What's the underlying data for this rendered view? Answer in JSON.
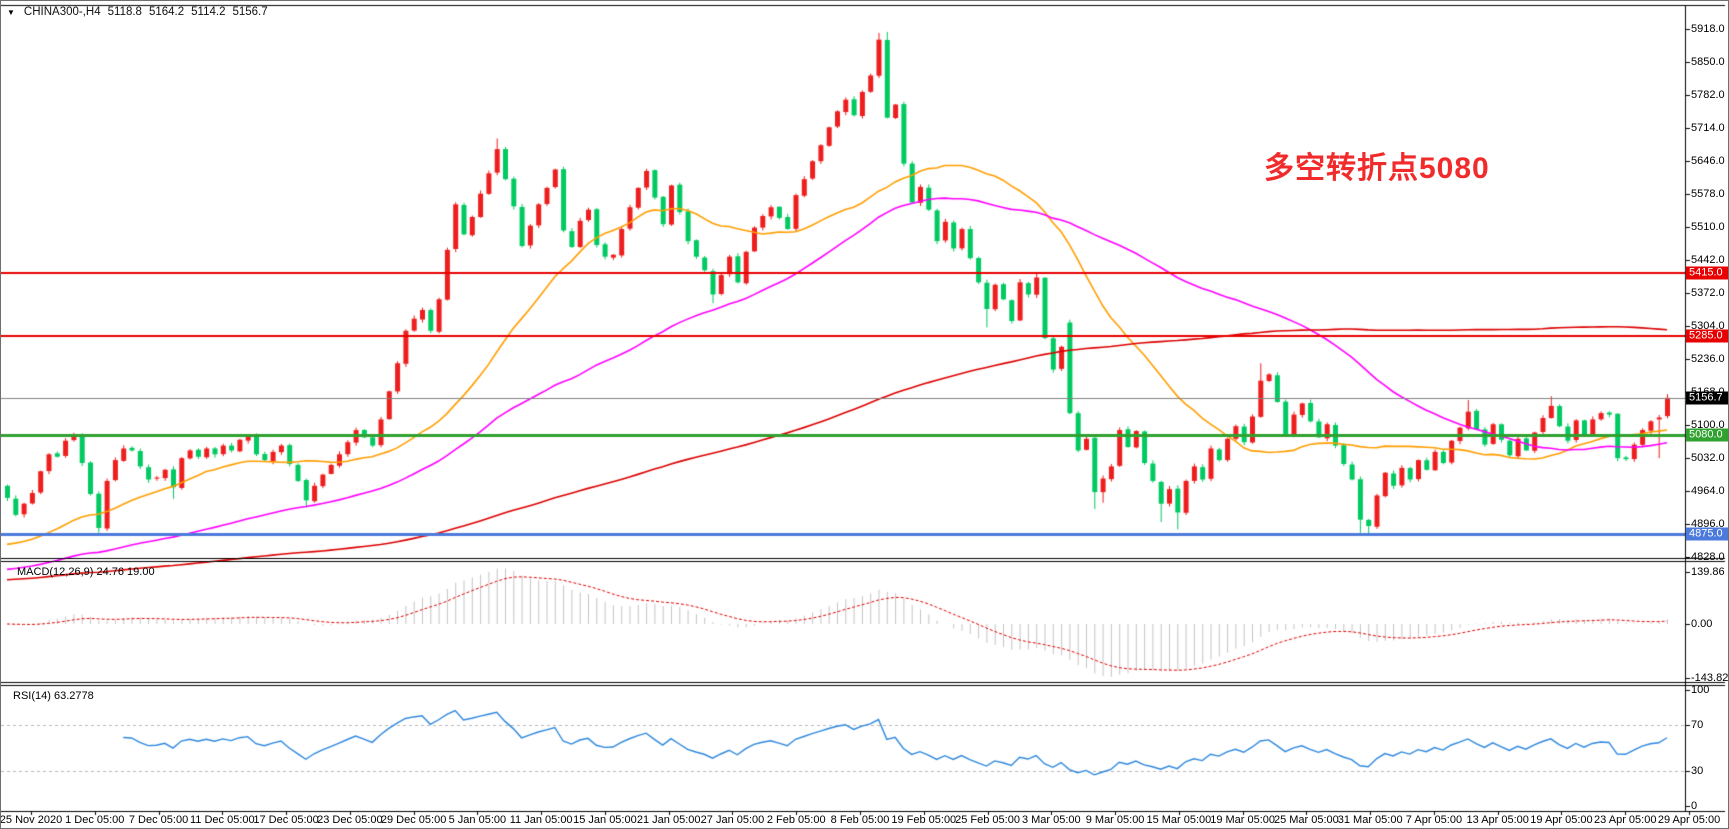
{
  "header": {
    "symbol": "CHINA300-,H4",
    "open": "5118.8",
    "high": "5164.2",
    "low": "5114.2",
    "close": "5156.7"
  },
  "chart_data": {
    "type": "candlestick",
    "title": "CHINA300- H4 chart with MACD and RSI",
    "up_color": "#ee1e1e",
    "down_color": "#00ca61",
    "main": {
      "price_axis": {
        "top": 5918.0,
        "bottom": 4828.0
      },
      "y_ticks": [
        5918.0,
        5850.0,
        5782.0,
        5714.0,
        5646.0,
        5578.0,
        5510.0,
        5442.0,
        5372.0,
        5304.0,
        5236.0,
        5168.0,
        5100.0,
        5032.0,
        4964.0,
        4896.0,
        4828.0
      ],
      "closes": [
        4950,
        4915,
        4938,
        4960,
        5005,
        5040,
        5035,
        5068,
        5078,
        5022,
        4958,
        4888,
        4985,
        5028,
        5052,
        5048,
        5015,
        4988,
        4992,
        5008,
        4972,
        5032,
        5048,
        5035,
        5052,
        5040,
        5058,
        5048,
        5070,
        5078,
        5040,
        5028,
        5045,
        5058,
        5020,
        4985,
        4945,
        4975,
        4998,
        5018,
        5040,
        5065,
        5090,
        5075,
        5058,
        5112,
        5170,
        5228,
        5295,
        5320,
        5338,
        5295,
        5360,
        5462,
        5556,
        5494,
        5530,
        5578,
        5620,
        5670,
        5608,
        5552,
        5470,
        5512,
        5556,
        5590,
        5628,
        5502,
        5468,
        5522,
        5545,
        5472,
        5448,
        5452,
        5505,
        5550,
        5590,
        5625,
        5570,
        5515,
        5595,
        5540,
        5480,
        5448,
        5420,
        5370,
        5410,
        5448,
        5395,
        5458,
        5508,
        5532,
        5550,
        5528,
        5505,
        5575,
        5608,
        5645,
        5678,
        5715,
        5748,
        5772,
        5740,
        5788,
        5822,
        5896,
        5735,
        5762,
        5640,
        5560,
        5592,
        5545,
        5480,
        5520,
        5465,
        5505,
        5445,
        5395,
        5340,
        5390,
        5360,
        5315,
        5395,
        5370,
        5405,
        5280,
        5215,
        5262,
        5125,
        5048,
        5072,
        4962,
        4990,
        5015,
        5090,
        5055,
        5088,
        5022,
        4985,
        4938,
        4968,
        4920,
        4985,
        5015,
        4988,
        5052,
        5028,
        5072,
        5098,
        5065,
        5118,
        5192,
        5205,
        5148,
        5082,
        5122,
        5145,
        5108,
        5075,
        5102,
        5058,
        5020,
        4988,
        4905,
        4892,
        4955,
        5002,
        4975,
        5012,
        4988,
        5028,
        5008,
        5045,
        5022,
        5068,
        5095,
        5128,
        5092,
        5060,
        5102,
        5070,
        5038,
        5072,
        5048,
        5085,
        5115,
        5140,
        5098,
        5068,
        5110,
        5080,
        5112,
        5125,
        5122,
        5032,
        5030,
        5060,
        5090,
        5108,
        5116,
        5156.7
      ],
      "overrides": {
        "11": {
          "low": 4878
        },
        "20": {
          "low": 4948
        },
        "36": {
          "low": 4930
        },
        "59": {
          "high": 5692
        },
        "85": {
          "low": 5352
        },
        "105": {
          "high": 5910
        },
        "106": {
          "high": 5912
        },
        "118": {
          "low": 5302
        },
        "124": {
          "high": 5413
        },
        "128": {
          "open": 5312,
          "high": 5318
        },
        "131": {
          "low": 4927
        },
        "132": {
          "low": 4940
        },
        "139": {
          "low": 4900
        },
        "141": {
          "low": 4885
        },
        "151": {
          "high": 5228
        },
        "163": {
          "low": 4878
        },
        "164": {
          "low": 4872
        },
        "176": {
          "high": 5152
        },
        "186": {
          "high": 5160
        },
        "199": {
          "open": 5112,
          "low": 5032
        },
        "200": {
          "open": 5118.8,
          "high": 5164.2,
          "low": 5114.2,
          "close": 5156.7
        }
      },
      "moving_averages": [
        {
          "name": "fast-ma",
          "period": 25,
          "backfill": 4850,
          "color": "#ff9e00"
        },
        {
          "name": "medium-ma",
          "period": 60,
          "backfill": 4800,
          "color": "#ff00ff"
        },
        {
          "name": "slow-ma",
          "period": 150,
          "backfill": 4780,
          "color": "#dd0000"
        }
      ],
      "h_lines": [
        {
          "value": 5415.0,
          "label": "5415.0",
          "color": "#e80000",
          "width": 2,
          "tag_bg": "#e80000"
        },
        {
          "value": 5285.0,
          "label": "5285.0",
          "color": "#e80000",
          "width": 2,
          "tag_bg": "#e80000"
        },
        {
          "value": 5156.7,
          "label": "5156.7",
          "color": "#808080",
          "width": 1,
          "tag_bg": "#000000"
        },
        {
          "value": 5080.0,
          "label": "5080.0",
          "color": "#2fa12f",
          "width": 3,
          "tag_bg": "#2fa12f"
        },
        {
          "value": 4875.0,
          "label": "4875.0",
          "color": "#4b79dc",
          "width": 3,
          "tag_bg": "#4b79dc"
        }
      ],
      "annotation": {
        "text": "多空转折点5080",
        "color": "#f12b2b"
      }
    },
    "macd": {
      "label": "MACD(12,26,9) 24.76 19.00",
      "fast": 12,
      "slow": 26,
      "signal_period": 9,
      "value": 24.76,
      "signal_value": 19.0,
      "tick_values": [
        139.86,
        0.0,
        -143.82
      ],
      "tick_labels": [
        "139.86",
        "0.00",
        "-143.82"
      ],
      "histogram_color": "#c4c4c4",
      "signal_color": "#e00000"
    },
    "rsi": {
      "label": "RSI(14) 63.2778",
      "period": 14,
      "value": 63.2778,
      "tick_values": [
        100,
        70,
        30,
        0
      ],
      "tick_labels": [
        "100",
        "70",
        "30",
        "0"
      ],
      "levels": [
        70,
        30
      ],
      "line_color": "#2d87dd",
      "level_color": "#b8b8b8"
    },
    "x_labels": [
      "25 Nov 2020",
      "1 Dec 05:00",
      "7 Dec 05:00",
      "11 Dec 05:00",
      "17 Dec 05:00",
      "23 Dec 05:00",
      "29 Dec 05:00",
      "5 Jan 05:00",
      "11 Jan 05:00",
      "15 Jan 05:00",
      "21 Jan 05:00",
      "27 Jan 05:00",
      "2 Feb 05:00",
      "8 Feb 05:00",
      "19 Feb 05:00",
      "25 Feb 05:00",
      "3 Mar 05:00",
      "9 Mar 05:00",
      "15 Mar 05:00",
      "19 Mar 05:00",
      "25 Mar 05:00",
      "31 Mar 05:00",
      "7 Apr 05:00",
      "13 Apr 05:00",
      "19 Apr 05:00",
      "23 Apr 05:00",
      "29 Apr 05:00"
    ]
  }
}
